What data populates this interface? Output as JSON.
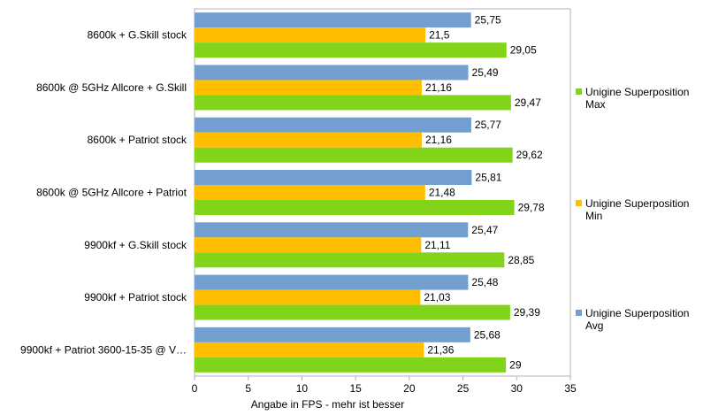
{
  "chart_data": {
    "type": "bar",
    "orientation": "horizontal",
    "title": "",
    "xlabel": "Angabe in FPS - mehr ist besser",
    "ylabel": "",
    "xlim": [
      0,
      35
    ],
    "xticks": [
      0,
      5,
      10,
      15,
      20,
      25,
      30,
      35
    ],
    "grid": false,
    "legend_position": "right",
    "categories": [
      "8600k + G.Skill stock",
      "8600k @ 5GHz Allcore + G.Skill",
      "8600k + Patriot stock",
      "8600k @ 5GHz Allcore + Patriot",
      "9900kf + G.Skill stock",
      "9900kf + Patriot stock",
      "9900kf + Patriot 3600-15-35 @ V…"
    ],
    "series": [
      {
        "name": "Unigine Superposition Avg",
        "color": "#729fcf",
        "values": [
          25.75,
          25.49,
          25.77,
          25.81,
          25.47,
          25.48,
          25.68
        ]
      },
      {
        "name": "Unigine Superposition Min",
        "color": "#ffbf00",
        "values": [
          21.5,
          21.16,
          21.16,
          21.48,
          21.11,
          21.03,
          21.36
        ]
      },
      {
        "name": "Unigine Superposition Max",
        "color": "#81d41a",
        "values": [
          29.05,
          29.47,
          29.62,
          29.78,
          28.85,
          29.39,
          29
        ]
      }
    ],
    "legend_order": [
      2,
      1,
      0
    ]
  }
}
